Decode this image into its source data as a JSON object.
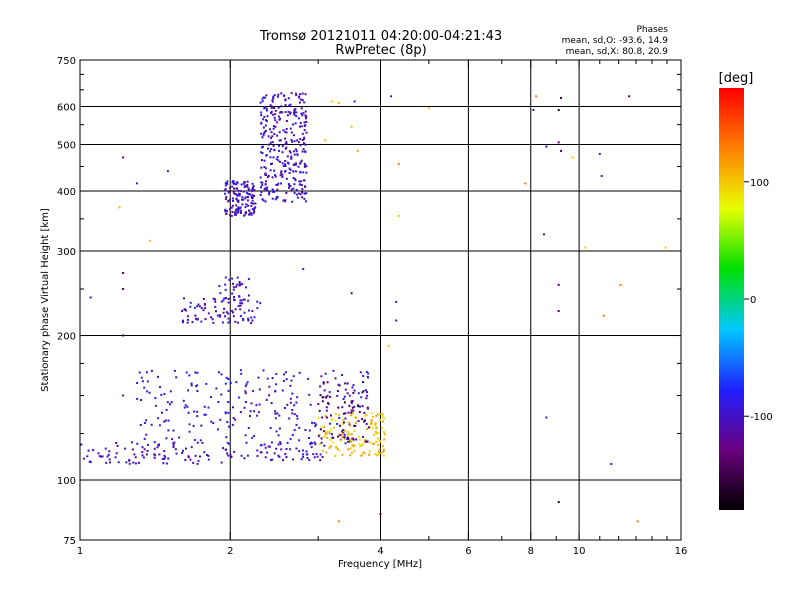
{
  "chart_data": {
    "type": "scatter",
    "title": "Tromsø 20121011 04:20:00-04:21:43",
    "subtitle": "RwPretec (8p)",
    "xlabel": "Frequency [MHz]",
    "ylabel": "Stationary phase Virtual Height [km]",
    "x_scale": "log",
    "y_scale": "log",
    "xlim": [
      1,
      16
    ],
    "ylim": [
      75,
      750
    ],
    "x_ticks": [
      1,
      2,
      4,
      6,
      8,
      10,
      16
    ],
    "x_tick_labels": [
      "1",
      "2",
      "4",
      "6",
      "8",
      "10",
      "16"
    ],
    "y_ticks": [
      75,
      100,
      200,
      300,
      400,
      500,
      600,
      750
    ],
    "y_tick_labels": [
      "75",
      "100",
      "200",
      "300",
      "400",
      "500",
      "600",
      "750"
    ],
    "grid": true,
    "legend": {
      "title": "Phases",
      "lines": [
        "mean, sd,O: -93.6, 14.9",
        "mean, sd,X: 80.8, 20.9"
      ],
      "placement": "top-right"
    },
    "colorbar": {
      "label": "[deg]",
      "range": [
        -180,
        180
      ],
      "ticks": [
        100,
        0,
        -100
      ],
      "tick_labels": [
        "100",
        "0",
        "-100"
      ],
      "colors": [
        "#000000",
        "#6a0080",
        "#2020ff",
        "#00c8ff",
        "#00e000",
        "#e8ff00",
        "#ff8000",
        "#ff0000"
      ]
    },
    "series": [
      {
        "clusters": [
          {
            "x0": 1.0,
            "x1": 2.0,
            "y0": 108,
            "y1": 120,
            "phase": -100,
            "n": 90
          },
          {
            "x0": 2.0,
            "x1": 3.1,
            "y0": 110,
            "y1": 120,
            "phase": -100,
            "n": 60
          },
          {
            "x0": 1.3,
            "x1": 3.8,
            "y0": 118,
            "y1": 170,
            "phase": -95,
            "n": 260
          },
          {
            "x0": 1.6,
            "x1": 2.3,
            "y0": 212,
            "y1": 240,
            "phase": -100,
            "n": 90
          },
          {
            "x0": 1.9,
            "x1": 2.2,
            "y0": 240,
            "y1": 265,
            "phase": -105,
            "n": 25
          },
          {
            "x0": 1.95,
            "x1": 2.25,
            "y0": 355,
            "y1": 420,
            "phase": -100,
            "n": 140
          },
          {
            "x0": 2.3,
            "x1": 2.85,
            "y0": 380,
            "y1": 640,
            "phase": -100,
            "n": 320
          },
          {
            "x0": 3.0,
            "x1": 4.1,
            "y0": 112,
            "y1": 138,
            "phase": 100,
            "n": 130
          },
          {
            "x0": 3.0,
            "x1": 3.8,
            "y0": 120,
            "y1": 160,
            "phase": -140,
            "n": 60
          }
        ]
      },
      {
        "points": [
          {
            "x": 1.22,
            "y": 470,
            "phase": -120
          },
          {
            "x": 1.3,
            "y": 415,
            "phase": -100
          },
          {
            "x": 1.5,
            "y": 440,
            "phase": -100
          },
          {
            "x": 1.2,
            "y": 370,
            "phase": 110
          },
          {
            "x": 1.38,
            "y": 315,
            "phase": 100
          },
          {
            "x": 1.22,
            "y": 270,
            "phase": -140
          },
          {
            "x": 1.22,
            "y": 250,
            "phase": -140
          },
          {
            "x": 1.05,
            "y": 240,
            "phase": -100
          },
          {
            "x": 1.22,
            "y": 200,
            "phase": -150
          },
          {
            "x": 1.22,
            "y": 150,
            "phase": -100
          },
          {
            "x": 3.2,
            "y": 615,
            "phase": 90
          },
          {
            "x": 3.3,
            "y": 610,
            "phase": 100
          },
          {
            "x": 3.55,
            "y": 615,
            "phase": -100
          },
          {
            "x": 4.2,
            "y": 630,
            "phase": -100
          },
          {
            "x": 5.0,
            "y": 595,
            "phase": 100
          },
          {
            "x": 3.1,
            "y": 510,
            "phase": 110
          },
          {
            "x": 3.5,
            "y": 545,
            "phase": 110
          },
          {
            "x": 3.6,
            "y": 485,
            "phase": 110
          },
          {
            "x": 4.35,
            "y": 455,
            "phase": 130
          },
          {
            "x": 4.35,
            "y": 355,
            "phase": 100
          },
          {
            "x": 3.5,
            "y": 245,
            "phase": -140
          },
          {
            "x": 4.3,
            "y": 235,
            "phase": -100
          },
          {
            "x": 4.3,
            "y": 215,
            "phase": -100
          },
          {
            "x": 4.15,
            "y": 190,
            "phase": 100
          },
          {
            "x": 2.8,
            "y": 275,
            "phase": -100
          },
          {
            "x": 4.0,
            "y": 85,
            "phase": -140
          },
          {
            "x": 3.3,
            "y": 82,
            "phase": 130
          },
          {
            "x": 8.2,
            "y": 630,
            "phase": 130
          },
          {
            "x": 8.1,
            "y": 590,
            "phase": -100
          },
          {
            "x": 8.6,
            "y": 495,
            "phase": -100
          },
          {
            "x": 9.2,
            "y": 625,
            "phase": -140
          },
          {
            "x": 9.1,
            "y": 590,
            "phase": -150
          },
          {
            "x": 9.1,
            "y": 505,
            "phase": -140
          },
          {
            "x": 9.2,
            "y": 485,
            "phase": -140
          },
          {
            "x": 7.8,
            "y": 415,
            "phase": 130
          },
          {
            "x": 8.5,
            "y": 325,
            "phase": -100
          },
          {
            "x": 9.1,
            "y": 255,
            "phase": -140
          },
          {
            "x": 9.1,
            "y": 225,
            "phase": -140
          },
          {
            "x": 8.6,
            "y": 135,
            "phase": -100
          },
          {
            "x": 9.1,
            "y": 90,
            "phase": -150
          },
          {
            "x": 11.0,
            "y": 478,
            "phase": -100
          },
          {
            "x": 11.1,
            "y": 430,
            "phase": -100
          },
          {
            "x": 12.6,
            "y": 630,
            "phase": -140
          },
          {
            "x": 12.1,
            "y": 255,
            "phase": 130
          },
          {
            "x": 11.2,
            "y": 220,
            "phase": 130
          },
          {
            "x": 11.6,
            "y": 108,
            "phase": -100
          },
          {
            "x": 13.1,
            "y": 82,
            "phase": 130
          },
          {
            "x": 14.9,
            "y": 305,
            "phase": 100
          },
          {
            "x": 10.3,
            "y": 305,
            "phase": 100
          },
          {
            "x": 9.7,
            "y": 470,
            "phase": 100
          }
        ]
      }
    ]
  }
}
